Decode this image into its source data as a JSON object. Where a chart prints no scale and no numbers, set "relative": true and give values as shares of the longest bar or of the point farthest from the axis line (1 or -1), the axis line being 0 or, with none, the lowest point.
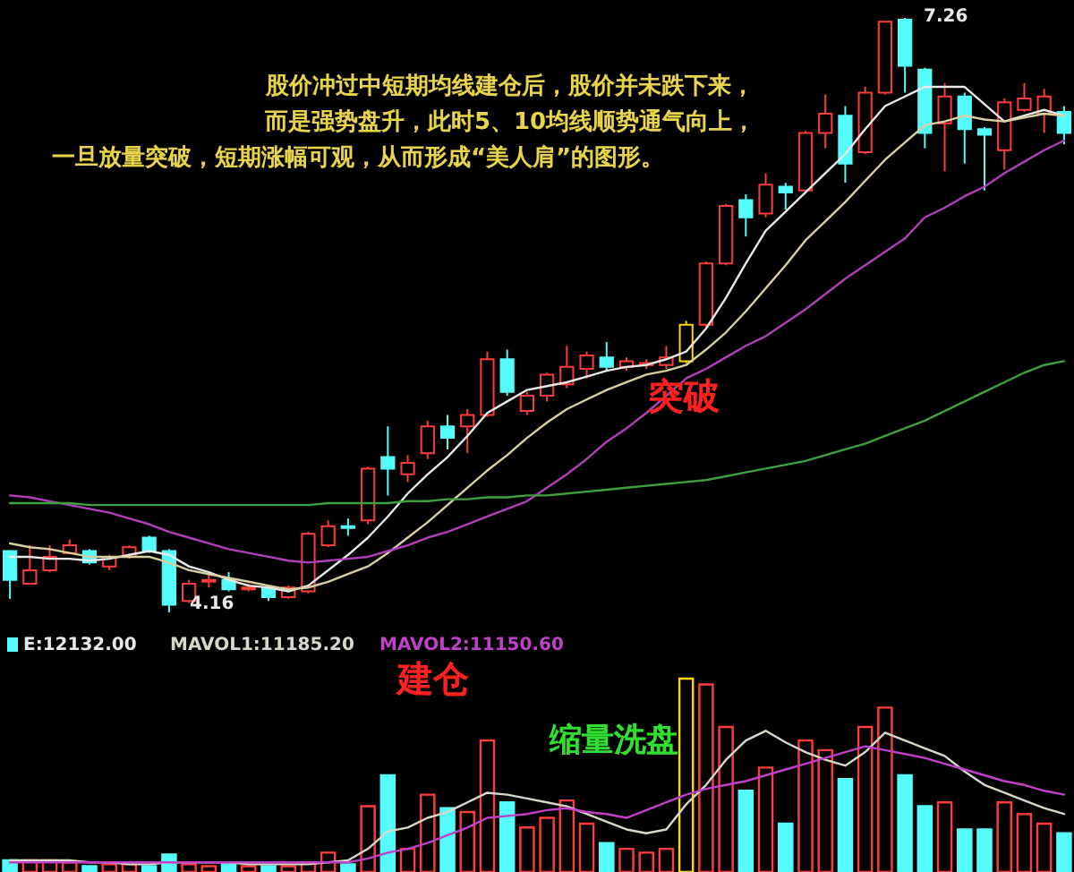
{
  "chart_data": [
    {
      "type": "candlestick",
      "tick_labels": false,
      "categories": [
        null,
        null,
        null,
        null,
        null,
        null,
        null,
        null,
        null,
        null,
        null,
        null,
        null,
        null,
        null,
        null,
        null,
        null,
        null,
        null,
        null,
        null,
        null,
        null,
        null,
        null,
        null,
        null,
        null,
        null,
        null,
        null,
        null,
        null,
        null,
        null,
        null,
        null,
        null,
        null,
        null,
        null,
        null,
        null,
        null,
        null,
        null,
        null,
        null,
        null,
        null,
        null,
        null,
        null
      ],
      "ohlc": [
        [
          4.48,
          4.48,
          4.23,
          4.33
        ],
        [
          4.31,
          4.51,
          4.31,
          4.38
        ],
        [
          4.38,
          4.51,
          4.37,
          4.45
        ],
        [
          4.47,
          4.54,
          4.47,
          4.51
        ],
        [
          4.48,
          4.49,
          4.41,
          4.42
        ],
        [
          4.4,
          4.46,
          4.38,
          4.45
        ],
        [
          4.45,
          4.51,
          4.44,
          4.5
        ],
        [
          4.55,
          4.56,
          4.47,
          4.48
        ],
        [
          4.48,
          4.49,
          4.16,
          4.2
        ],
        [
          4.22,
          4.33,
          4.21,
          4.31
        ],
        [
          4.32,
          4.36,
          4.29,
          4.33
        ],
        [
          4.33,
          4.37,
          4.27,
          4.28
        ],
        [
          4.28,
          4.31,
          4.27,
          4.29
        ],
        [
          4.29,
          4.3,
          4.22,
          4.24
        ],
        [
          4.24,
          4.3,
          4.23,
          4.29
        ],
        [
          4.27,
          4.58,
          4.26,
          4.57
        ],
        [
          4.51,
          4.64,
          4.5,
          4.61
        ],
        [
          4.61,
          4.65,
          4.56,
          4.6
        ],
        [
          4.64,
          4.92,
          4.62,
          4.91
        ],
        [
          4.97,
          5.13,
          4.77,
          4.91
        ],
        [
          4.88,
          4.98,
          4.84,
          4.94
        ],
        [
          4.99,
          5.16,
          4.96,
          5.13
        ],
        [
          5.13,
          5.19,
          5.01,
          5.07
        ],
        [
          5.13,
          5.22,
          4.99,
          5.19
        ],
        [
          5.19,
          5.52,
          5.18,
          5.48
        ],
        [
          5.48,
          5.53,
          5.29,
          5.31
        ],
        [
          5.21,
          5.31,
          5.19,
          5.29
        ],
        [
          5.29,
          5.41,
          5.26,
          5.4
        ],
        [
          5.35,
          5.55,
          5.33,
          5.44
        ],
        [
          5.43,
          5.52,
          5.38,
          5.5
        ],
        [
          5.49,
          5.57,
          5.42,
          5.44
        ],
        [
          5.44,
          5.49,
          5.42,
          5.47
        ],
        [
          5.45,
          5.48,
          5.43,
          5.46
        ],
        [
          5.45,
          5.55,
          5.43,
          5.49
        ],
        [
          5.47,
          5.68,
          5.46,
          5.66
        ],
        [
          5.66,
          5.99,
          5.65,
          5.98
        ],
        [
          5.98,
          6.29,
          5.97,
          6.28
        ],
        [
          6.31,
          6.34,
          6.12,
          6.22
        ],
        [
          6.24,
          6.45,
          6.22,
          6.39
        ],
        [
          6.38,
          6.4,
          6.26,
          6.35
        ],
        [
          6.36,
          6.67,
          6.35,
          6.66
        ],
        [
          6.66,
          6.86,
          6.58,
          6.76
        ],
        [
          6.75,
          6.8,
          6.4,
          6.5
        ],
        [
          6.56,
          6.9,
          6.55,
          6.87
        ],
        [
          6.87,
          7.24,
          6.86,
          7.24
        ],
        [
          7.25,
          7.26,
          6.87,
          7.01
        ],
        [
          6.99,
          7.0,
          6.58,
          6.66
        ],
        [
          6.71,
          6.92,
          6.46,
          6.85
        ],
        [
          6.85,
          6.87,
          6.5,
          6.68
        ],
        [
          6.68,
          6.69,
          6.36,
          6.65
        ],
        [
          6.57,
          6.84,
          6.47,
          6.82
        ],
        [
          6.78,
          6.92,
          6.77,
          6.84
        ],
        [
          6.76,
          6.89,
          6.66,
          6.85
        ],
        [
          6.77,
          6.8,
          6.6,
          6.66
        ]
      ],
      "colors": [
        "#54fcfc",
        "#ff3c3c",
        "#ff3c3c",
        "#ff3c3c",
        "#54fcfc",
        "#ff3c3c",
        "#ff3c3c",
        "#54fcfc",
        "#54fcfc",
        "#ff3c3c",
        "#ff3c3c",
        "#54fcfc",
        "#ff3c3c",
        "#54fcfc",
        "#ff3c3c",
        "#ff3c3c",
        "#ff3c3c",
        "#54fcfc",
        "#ff3c3c",
        "#54fcfc",
        "#ff3c3c",
        "#ff3c3c",
        "#54fcfc",
        "#ff3c3c",
        "#ff3c3c",
        "#54fcfc",
        "#ff3c3c",
        "#ff3c3c",
        "#ff3c3c",
        "#ff3c3c",
        "#54fcfc",
        "#ff3c3c",
        "#ff3c3c",
        "#ff3c3c",
        "#ffd700",
        "#ff3c3c",
        "#ff3c3c",
        "#54fcfc",
        "#ff3c3c",
        "#54fcfc",
        "#ff3c3c",
        "#ff3c3c",
        "#54fcfc",
        "#ff3c3c",
        "#ff3c3c",
        "#54fcfc",
        "#54fcfc",
        "#ff3c3c",
        "#54fcfc",
        "#54fcfc",
        "#ff3c3c",
        "#ff3c3c",
        "#ff3c3c",
        "#54fcfc"
      ],
      "series": [
        {
          "type": "line",
          "color": "#e8e8e8",
          "values": [
            4.45,
            4.45,
            4.44,
            4.44,
            4.43,
            4.44,
            4.46,
            4.48,
            4.46,
            4.4,
            4.37,
            4.33,
            4.3,
            4.29,
            4.27,
            4.3,
            4.38,
            4.46,
            4.55,
            4.66,
            4.78,
            4.88,
            4.97,
            5.08,
            5.2,
            5.26,
            5.32,
            5.34,
            5.36,
            5.39,
            5.42,
            5.44,
            5.45,
            5.48,
            5.52,
            5.64,
            5.8,
            5.98,
            6.15,
            6.25,
            6.35,
            6.45,
            6.55,
            6.68,
            6.8,
            6.85,
            6.9,
            6.9,
            6.9,
            6.81,
            6.72,
            6.75,
            6.78,
            6.75
          ]
        },
        {
          "type": "line",
          "color": "#d8d0a0",
          "values": [
            4.52,
            4.5,
            4.49,
            4.47,
            4.45,
            4.45,
            4.45,
            4.45,
            4.42,
            4.38,
            4.36,
            4.34,
            4.32,
            4.3,
            4.28,
            4.29,
            4.32,
            4.36,
            4.4,
            4.47,
            4.55,
            4.63,
            4.72,
            4.81,
            4.9,
            4.98,
            5.07,
            5.15,
            5.22,
            5.27,
            5.32,
            5.36,
            5.4,
            5.42,
            5.45,
            5.53,
            5.62,
            5.73,
            5.85,
            5.97,
            6.1,
            6.2,
            6.3,
            6.41,
            6.52,
            6.61,
            6.7,
            6.72,
            6.75,
            6.73,
            6.72,
            6.74,
            6.76,
            6.75
          ]
        },
        {
          "type": "line",
          "color": "#b040b8",
          "values": [
            4.77,
            4.76,
            4.74,
            4.72,
            4.7,
            4.68,
            4.65,
            4.62,
            4.58,
            4.55,
            4.52,
            4.49,
            4.47,
            4.45,
            4.43,
            4.42,
            4.43,
            4.44,
            4.45,
            4.48,
            4.51,
            4.55,
            4.58,
            4.62,
            4.66,
            4.7,
            4.74,
            4.81,
            4.88,
            4.96,
            5.05,
            5.12,
            5.2,
            5.29,
            5.38,
            5.43,
            5.49,
            5.55,
            5.6,
            5.67,
            5.74,
            5.82,
            5.9,
            5.97,
            6.04,
            6.11,
            6.22,
            6.27,
            6.33,
            6.38,
            6.45,
            6.51,
            6.57,
            6.62
          ]
        },
        {
          "type": "line",
          "color": "#40a040",
          "values": [
            4.73,
            4.73,
            4.73,
            4.73,
            4.72,
            4.72,
            4.72,
            4.72,
            4.72,
            4.72,
            4.72,
            4.72,
            4.72,
            4.72,
            4.72,
            4.72,
            4.73,
            4.73,
            4.73,
            4.73,
            4.74,
            4.74,
            4.75,
            4.75,
            4.76,
            4.76,
            4.77,
            4.77,
            4.78,
            4.79,
            4.8,
            4.81,
            4.82,
            4.83,
            4.84,
            4.85,
            4.87,
            4.89,
            4.91,
            4.93,
            4.95,
            4.98,
            5.01,
            5.04,
            5.08,
            5.12,
            5.16,
            5.21,
            5.26,
            5.31,
            5.36,
            5.41,
            5.45,
            5.47
          ]
        }
      ],
      "annotations": [
        "股价冲过中短期均线建仓后，股价并未跌下来，",
        "而是强势盘升，此时5、10均线顺势通气向上，",
        "一旦放量突破，短期涨幅可观，从而形成“美人肩”的图形。",
        "突破",
        "7.26",
        "4.16"
      ]
    },
    {
      "type": "bar",
      "relative": true,
      "tick_labels": false,
      "categories": [
        null,
        null,
        null,
        null,
        null,
        null,
        null,
        null,
        null,
        null,
        null,
        null,
        null,
        null,
        null,
        null,
        null,
        null,
        null,
        null,
        null,
        null,
        null,
        null,
        null,
        null,
        null,
        null,
        null,
        null,
        null,
        null,
        null,
        null,
        null,
        null,
        null,
        null,
        null,
        null,
        null,
        null,
        null,
        null,
        null,
        null,
        null,
        null,
        null,
        null,
        null,
        null,
        null,
        null
      ],
      "series": [
        {
          "name": "E:12132.00",
          "type": "bar",
          "colors": [
            "#54fcfc",
            "#ff3c3c",
            "#ff3c3c",
            "#ff3c3c",
            "#54fcfc",
            "#ff3c3c",
            "#ff3c3c",
            "#54fcfc",
            "#54fcfc",
            "#ff3c3c",
            "#ff3c3c",
            "#54fcfc",
            "#ff3c3c",
            "#54fcfc",
            "#ff3c3c",
            "#ff3c3c",
            "#ff3c3c",
            "#54fcfc",
            "#ff3c3c",
            "#54fcfc",
            "#ff3c3c",
            "#ff3c3c",
            "#54fcfc",
            "#ff3c3c",
            "#ff3c3c",
            "#54fcfc",
            "#ff3c3c",
            "#ff3c3c",
            "#ff3c3c",
            "#ff3c3c",
            "#54fcfc",
            "#ff3c3c",
            "#ff3c3c",
            "#ff3c3c",
            "#ffd700",
            "#ff3c3c",
            "#ff3c3c",
            "#54fcfc",
            "#ff3c3c",
            "#54fcfc",
            "#ff3c3c",
            "#ff3c3c",
            "#54fcfc",
            "#ff3c3c",
            "#ff3c3c",
            "#54fcfc",
            "#54fcfc",
            "#ff3c3c",
            "#54fcfc",
            "#54fcfc",
            "#ff3c3c",
            "#ff3c3c",
            "#ff3c3c",
            "#54fcfc"
          ],
          "values": [
            0.06,
            0.06,
            0.06,
            0.05,
            0.03,
            0.04,
            0.04,
            0.03,
            0.09,
            0.04,
            0.03,
            0.04,
            0.03,
            0.03,
            0.03,
            0.05,
            0.1,
            0.04,
            0.34,
            0.5,
            0.12,
            0.4,
            0.33,
            0.31,
            0.68,
            0.36,
            0.23,
            0.28,
            0.37,
            0.25,
            0.15,
            0.12,
            0.1,
            0.12,
            1.0,
            0.97,
            0.75,
            0.42,
            0.54,
            0.25,
            0.68,
            0.63,
            0.48,
            0.75,
            0.85,
            0.5,
            0.34,
            0.36,
            0.22,
            0.22,
            0.36,
            0.3,
            0.25,
            0.2
          ]
        },
        {
          "name": "MAVOL1:11185.20",
          "type": "line",
          "color": "#d8d8c8",
          "values": [
            0.06,
            0.06,
            0.06,
            0.06,
            0.05,
            0.05,
            0.04,
            0.04,
            0.05,
            0.05,
            0.05,
            0.05,
            0.04,
            0.04,
            0.04,
            0.04,
            0.05,
            0.06,
            0.12,
            0.21,
            0.23,
            0.28,
            0.31,
            0.36,
            0.41,
            0.4,
            0.38,
            0.36,
            0.34,
            0.3,
            0.26,
            0.22,
            0.2,
            0.22,
            0.35,
            0.45,
            0.58,
            0.68,
            0.73,
            0.67,
            0.62,
            0.58,
            0.55,
            0.62,
            0.72,
            0.68,
            0.64,
            0.6,
            0.52,
            0.45,
            0.41,
            0.37,
            0.33,
            0.3
          ]
        },
        {
          "name": "MAVOL2:11150.60",
          "type": "line",
          "color": "#c040c8",
          "values": [
            0.05,
            0.05,
            0.05,
            0.05,
            0.05,
            0.05,
            0.05,
            0.05,
            0.05,
            0.05,
            0.05,
            0.05,
            0.05,
            0.05,
            0.05,
            0.05,
            0.05,
            0.05,
            0.07,
            0.1,
            0.12,
            0.15,
            0.19,
            0.23,
            0.28,
            0.29,
            0.3,
            0.32,
            0.33,
            0.31,
            0.3,
            0.28,
            0.32,
            0.36,
            0.4,
            0.43,
            0.45,
            0.47,
            0.5,
            0.53,
            0.56,
            0.59,
            0.62,
            0.65,
            0.63,
            0.61,
            0.59,
            0.56,
            0.53,
            0.5,
            0.47,
            0.45,
            0.42,
            0.4
          ]
        }
      ],
      "annotations": [
        "建仓",
        "缩量洗盘"
      ]
    }
  ]
}
